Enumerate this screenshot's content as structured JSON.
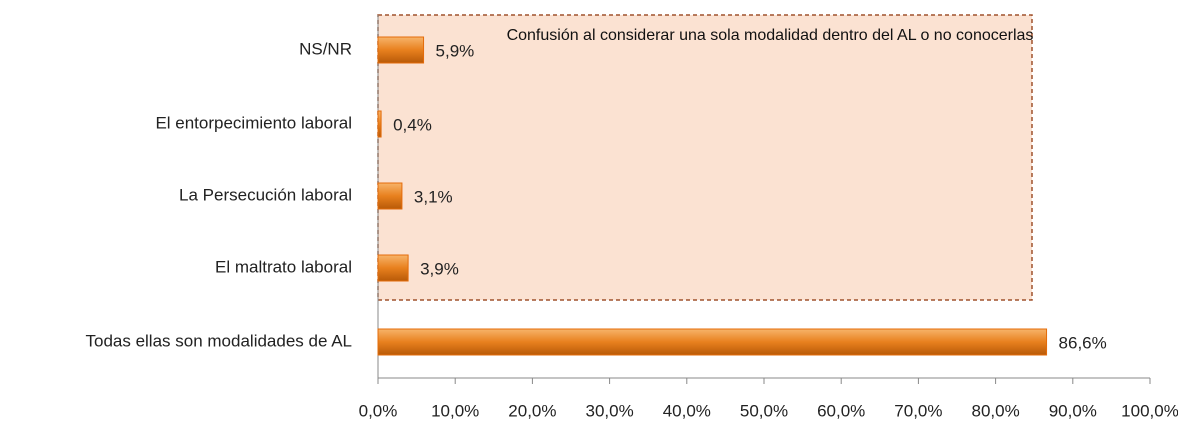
{
  "chart_data": {
    "type": "bar",
    "orientation": "horizontal",
    "annotation": "Confusión al considerar una sola modalidad dentro del AL o no conocerlas",
    "categories": [
      "NS/NR",
      "El entorpecimiento laboral",
      "La Persecución laboral",
      "El maltrato laboral",
      "Todas ellas son modalidades de AL"
    ],
    "values": [
      5.9,
      0.4,
      3.1,
      3.9,
      86.6
    ],
    "value_labels": [
      "5,9%",
      "0,4%",
      "3,1%",
      "3,9%",
      "86,6%"
    ],
    "color": "#e46c0a",
    "xlim": [
      0,
      100
    ],
    "xticks": [
      {
        "value": 0,
        "label": "0,0%"
      },
      {
        "value": 10,
        "label": "10,0%"
      },
      {
        "value": 20,
        "label": "20,0%"
      },
      {
        "value": 30,
        "label": "30,0%"
      },
      {
        "value": 40,
        "label": "40,0%"
      },
      {
        "value": 50,
        "label": "50,0%"
      },
      {
        "value": 60,
        "label": "60,0%"
      },
      {
        "value": 70,
        "label": "70,0%"
      },
      {
        "value": 80,
        "label": "80,0%"
      },
      {
        "value": 90,
        "label": "90,0%"
      },
      {
        "value": 100,
        "label": "100,0%"
      }
    ]
  }
}
